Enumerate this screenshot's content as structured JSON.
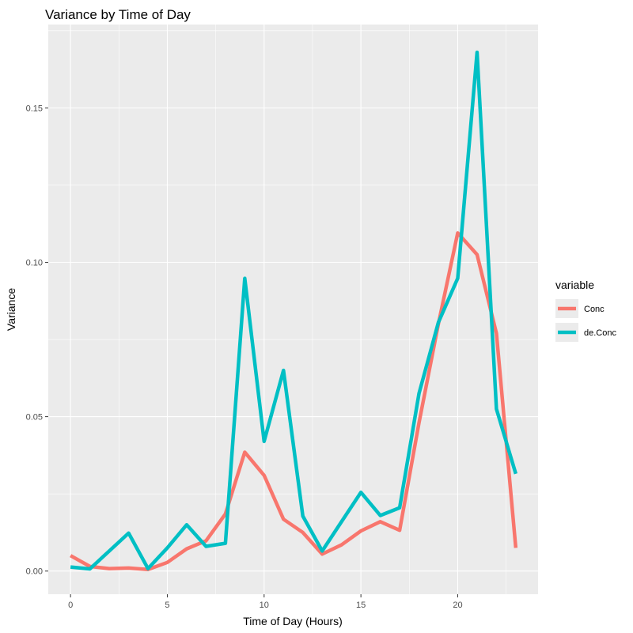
{
  "chart_data": {
    "type": "line",
    "title": "Variance by Time of Day",
    "xlabel": "Time of Day (Hours)",
    "ylabel": "Variance",
    "xlim": [
      -1.15,
      24.15
    ],
    "ylim": [
      -0.0075,
      0.177
    ],
    "x_ticks": [
      0,
      5,
      10,
      15,
      20
    ],
    "x_tick_labels": [
      "0",
      "5",
      "10",
      "15",
      "20"
    ],
    "y_ticks": [
      0,
      0.05,
      0.1,
      0.15
    ],
    "y_tick_labels": [
      "0.00",
      "0.05",
      "0.10",
      "0.15"
    ],
    "grid": true,
    "legend": {
      "title": "variable",
      "position": "right"
    },
    "x": [
      0,
      1,
      2,
      3,
      4,
      5,
      6,
      7,
      8,
      9,
      10,
      11,
      12,
      13,
      14,
      15,
      16,
      17,
      18,
      19,
      20,
      21,
      22,
      23
    ],
    "series": [
      {
        "name": "Conc",
        "color": "#F8766D",
        "values": [
          0.005,
          0.0015,
          0.0008,
          0.001,
          0.0005,
          0.0028,
          0.0072,
          0.0098,
          0.0185,
          0.0385,
          0.031,
          0.0168,
          0.0125,
          0.0055,
          0.0085,
          0.013,
          0.016,
          0.0132,
          0.048,
          0.08,
          0.1095,
          0.1025,
          0.077,
          0.0075
        ]
      },
      {
        "name": "de.Conc",
        "color": "#00BFC4",
        "values": [
          0.0013,
          0.0007,
          0.0065,
          0.0123,
          0.0008,
          0.0075,
          0.015,
          0.008,
          0.009,
          0.0948,
          0.042,
          0.065,
          0.0178,
          0.0065,
          0.016,
          0.0255,
          0.018,
          0.0205,
          0.0575,
          0.0805,
          0.0948,
          0.168,
          0.0525,
          0.0315
        ]
      }
    ]
  }
}
